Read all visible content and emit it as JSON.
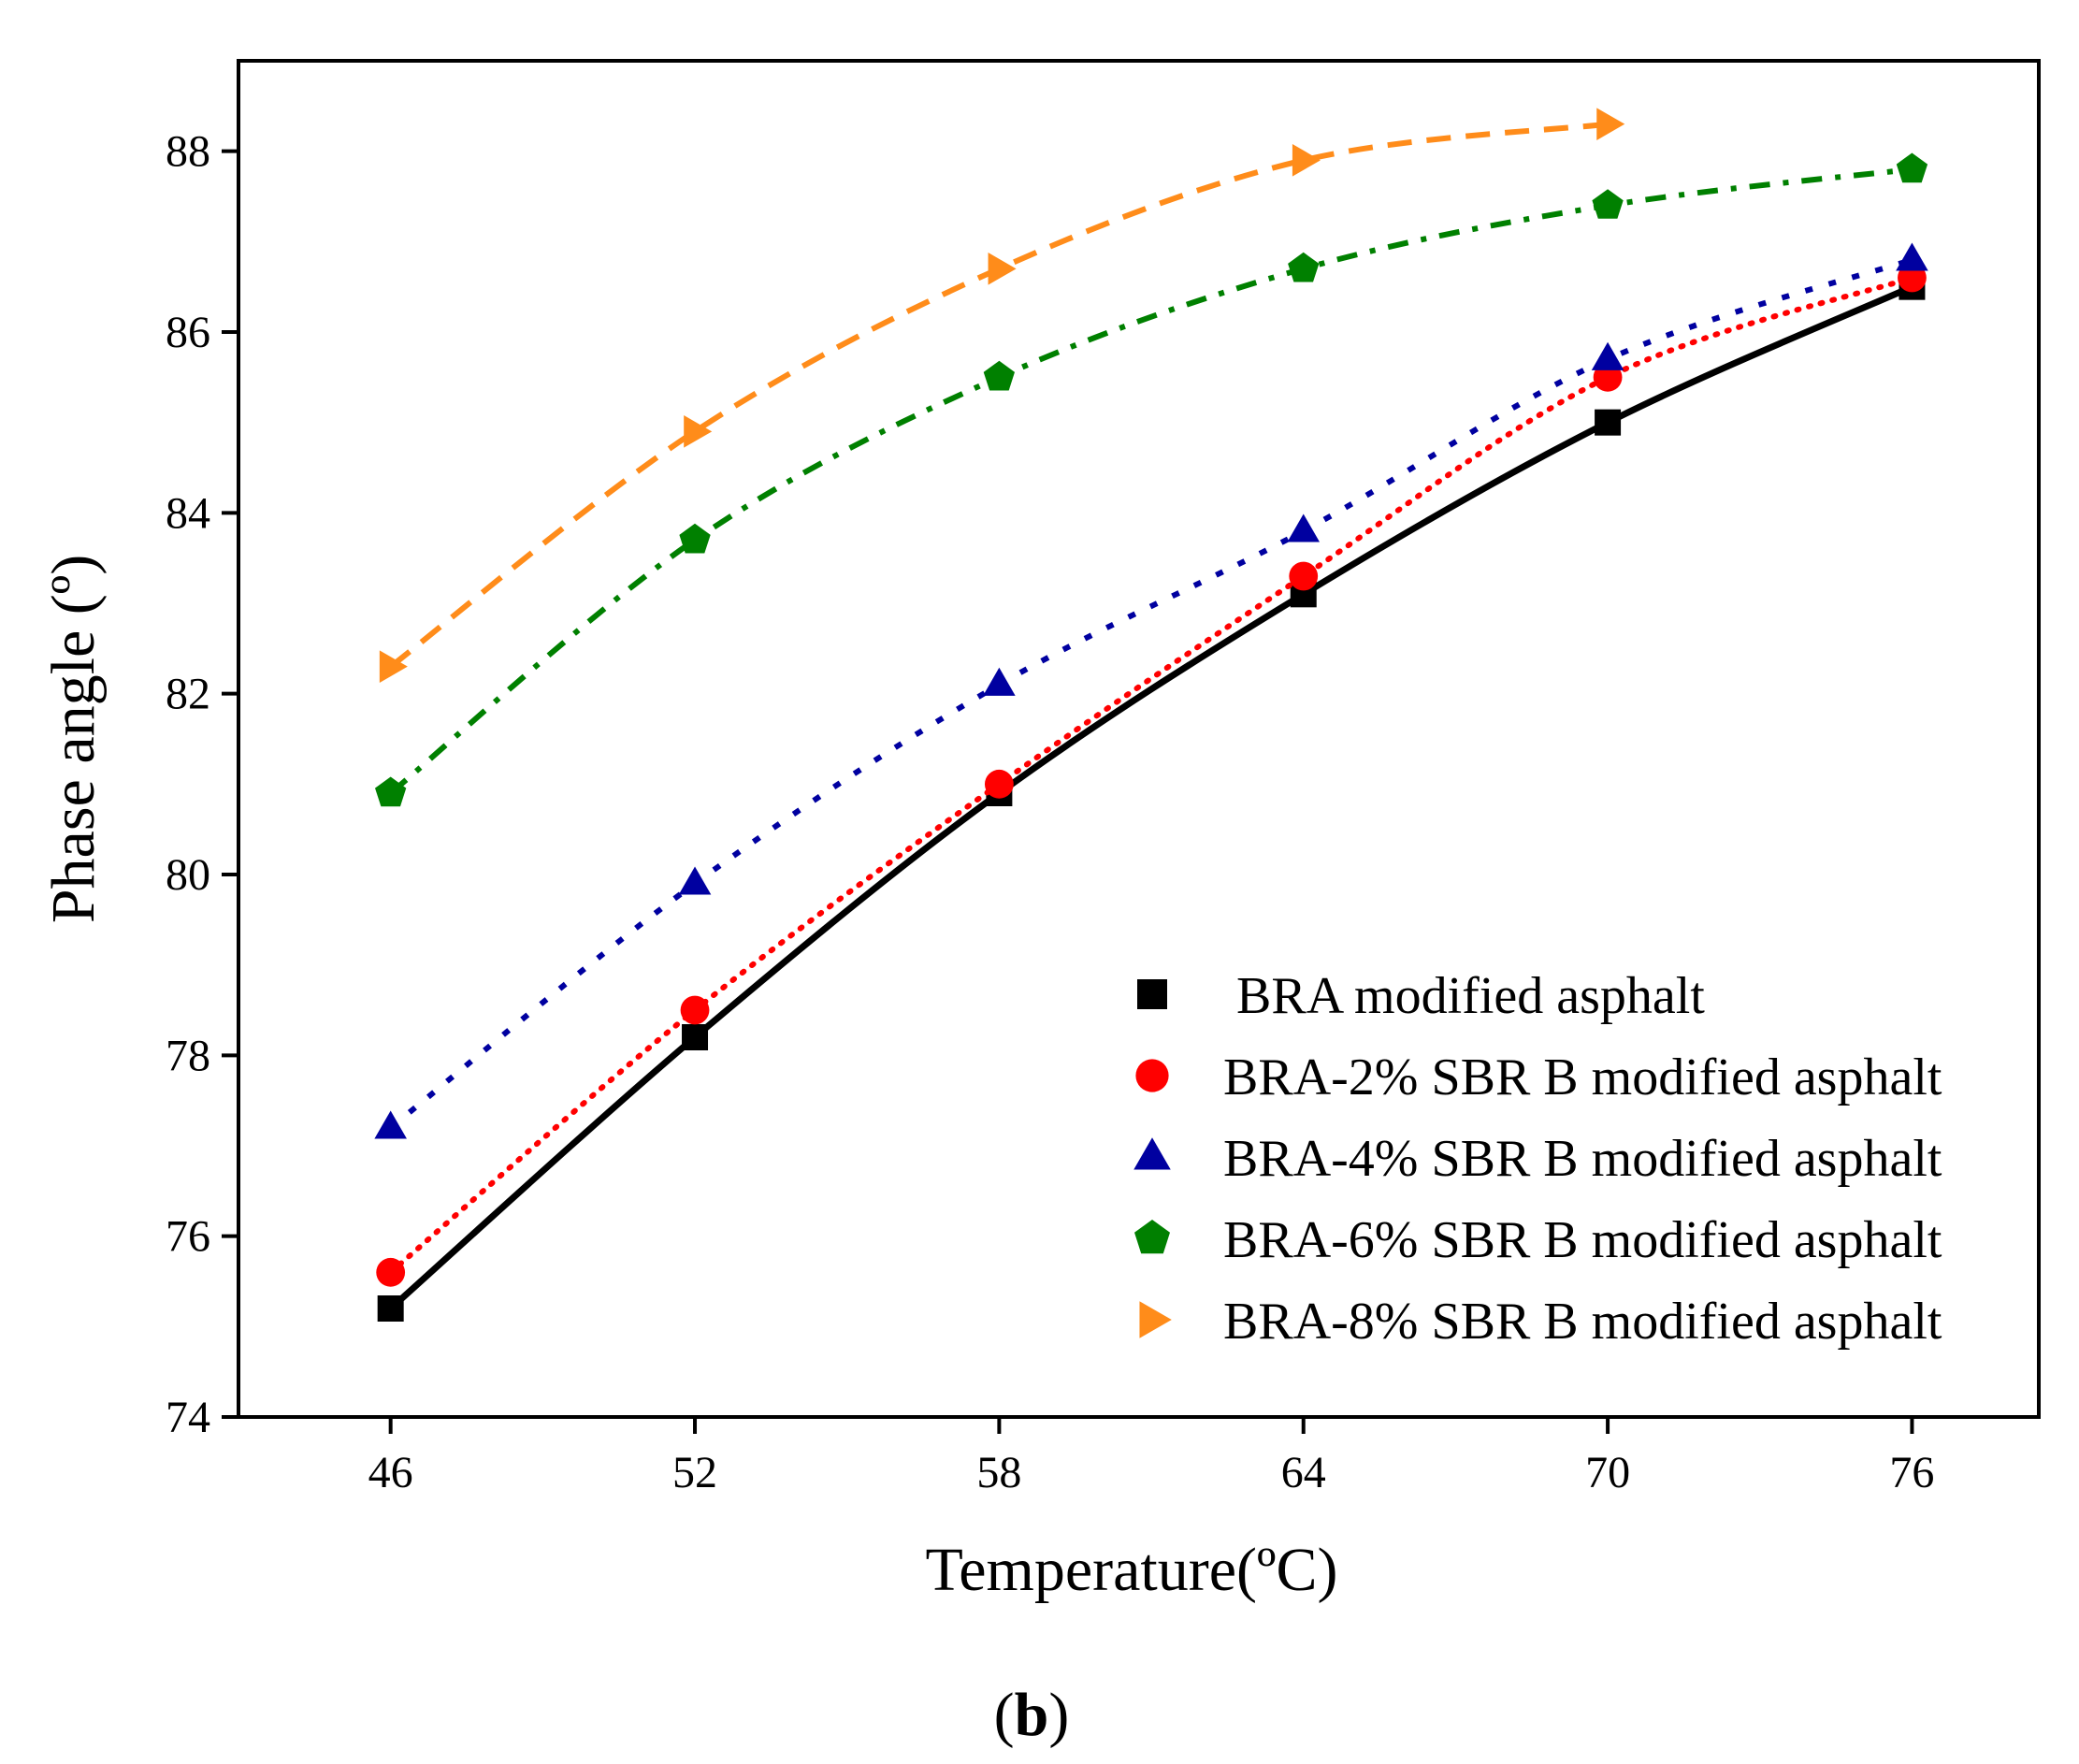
{
  "chart_data": {
    "type": "line",
    "xlabel": "Temperature(ºC)",
    "ylabel": "Phase angle (º)",
    "panel_label": "(b)",
    "panel_open": "(",
    "panel_letter": "b",
    "panel_close": ")",
    "xlim": [
      43,
      78.5
    ],
    "ylim": [
      74,
      89
    ],
    "xticks": [
      46,
      52,
      58,
      64,
      70,
      76
    ],
    "yticks": [
      74,
      76,
      78,
      80,
      82,
      84,
      86,
      88
    ],
    "grid": false,
    "legend_position": "bottom-right",
    "series": [
      {
        "name": " BRA modified asphalt",
        "marker": "square",
        "line_style": "solid",
        "color": "#000000",
        "x": [
          46,
          52,
          58,
          64,
          70,
          76
        ],
        "y": [
          75.2,
          78.2,
          80.9,
          83.1,
          85.0,
          86.5
        ]
      },
      {
        "name": "BRA-2% SBR B modified asphalt",
        "marker": "circle",
        "line_style": "dotted",
        "color": "#ff0000",
        "x": [
          46,
          52,
          58,
          64,
          70,
          76
        ],
        "y": [
          75.6,
          78.5,
          81.0,
          83.3,
          85.5,
          86.6
        ]
      },
      {
        "name": "BRA-4% SBR B modified asphalt",
        "marker": "triangle-up",
        "line_style": "short-dash",
        "color": "#0000a0",
        "x": [
          46,
          52,
          58,
          64,
          70,
          76
        ],
        "y": [
          77.2,
          79.9,
          82.1,
          83.8,
          85.7,
          86.8
        ]
      },
      {
        "name": "BRA-6% SBR B modified asphalt",
        "marker": "pentagon",
        "line_style": "dash-dot",
        "color": "#008000",
        "x": [
          46,
          52,
          58,
          64,
          70,
          76
        ],
        "y": [
          80.9,
          83.7,
          85.5,
          86.7,
          87.4,
          87.8
        ]
      },
      {
        "name": "BRA-8% SBR B modified asphalt",
        "marker": "triangle-right",
        "line_style": "dash",
        "color": "#ff8c1a",
        "x": [
          46,
          52,
          58,
          64,
          70
        ],
        "y": [
          82.3,
          84.9,
          86.7,
          87.9,
          88.3
        ]
      }
    ]
  }
}
